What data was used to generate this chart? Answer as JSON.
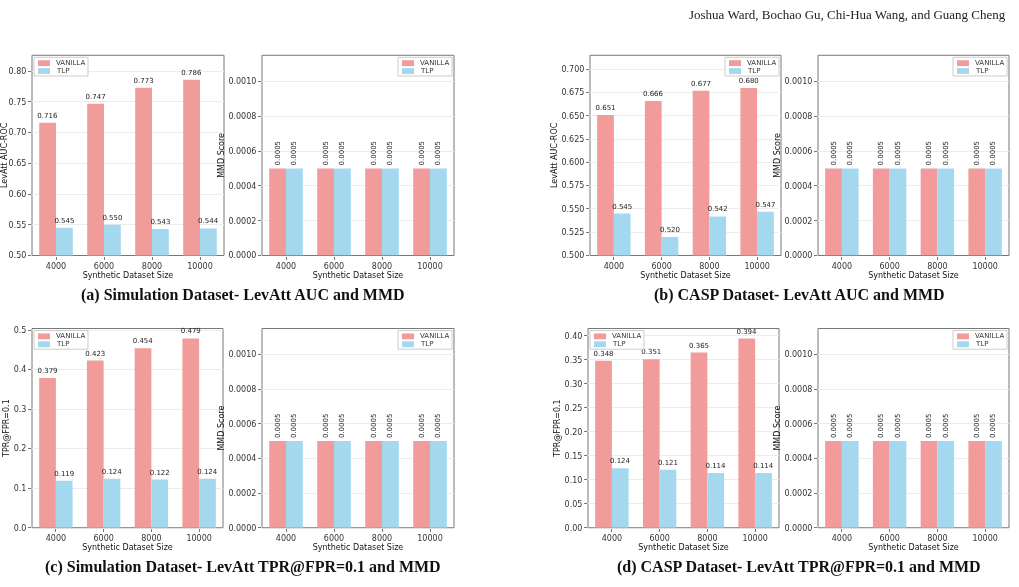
{
  "chart_data": [
    {
      "type": "bar",
      "categories": [
        "4000",
        "6000",
        "8000",
        "10000"
      ],
      "xlabel": "Synthetic Dataset Size",
      "ylabel": "LevAtt AUC-ROC",
      "ylim": [
        0.5,
        0.826
      ],
      "yticks": [
        {
          "value": 0.5,
          "label": "0.50"
        },
        {
          "value": 0.55,
          "label": "0.55"
        },
        {
          "value": 0.6,
          "label": "0.60"
        },
        {
          "value": 0.65,
          "label": "0.65"
        },
        {
          "value": 0.7,
          "label": "0.70"
        },
        {
          "value": 0.75,
          "label": "0.75"
        },
        {
          "value": 0.8,
          "label": "0.80"
        }
      ],
      "grid": "y",
      "legend": "top left",
      "series": [
        {
          "name": "VANILLA",
          "color": "#f29b9b",
          "values": [
            0.716,
            0.747,
            0.773,
            0.786
          ],
          "value_labels": [
            "0.716",
            "0.747",
            "0.773",
            "0.786"
          ]
        },
        {
          "name": "TLP",
          "color": "#a3d8ef",
          "values": [
            0.545,
            0.55,
            0.543,
            0.544
          ],
          "value_labels": [
            "0.545",
            "0.550",
            "0.543",
            "0.544"
          ]
        }
      ],
      "annotations": [
        "(a) Simulation Dataset- LevAtt AUC and MMD"
      ]
    },
    {
      "type": "bar",
      "categories": [
        "4000",
        "6000",
        "8000",
        "10000"
      ],
      "xlabel": "Synthetic Dataset Size",
      "ylabel": "MMD Score",
      "ylim": [
        0,
        0.00115
      ],
      "yticks": [
        {
          "value": 0,
          "label": "0.0000"
        },
        {
          "value": 0.0002,
          "label": "0.0002"
        },
        {
          "value": 0.0004,
          "label": "0.0004"
        },
        {
          "value": 0.0006,
          "label": "0.0006"
        },
        {
          "value": 0.0008,
          "label": "0.0008"
        },
        {
          "value": 0.001,
          "label": "0.0010"
        }
      ],
      "grid": "y",
      "legend": "top right",
      "series": [
        {
          "name": "VANILLA",
          "color": "#f29b9b",
          "values": [
            0.0005,
            0.0005,
            0.0005,
            0.0005
          ],
          "value_labels": [
            "0.0005",
            "0.0005",
            "0.0005",
            "0.0005"
          ]
        },
        {
          "name": "TLP",
          "color": "#a3d8ef",
          "values": [
            0.0005,
            0.0005,
            0.0005,
            0.0005
          ],
          "value_labels": [
            "0.0005",
            "0.0005",
            "0.0005",
            "0.0005"
          ]
        }
      ]
    },
    {
      "type": "bar",
      "categories": [
        "4000",
        "6000",
        "8000",
        "10000"
      ],
      "xlabel": "Synthetic Dataset Size",
      "ylabel": "LevAtt AUC-ROC",
      "ylim": [
        0.5,
        0.715
      ],
      "yticks": [
        {
          "value": 0.5,
          "label": "0.500"
        },
        {
          "value": 0.525,
          "label": "0.525"
        },
        {
          "value": 0.55,
          "label": "0.550"
        },
        {
          "value": 0.575,
          "label": "0.575"
        },
        {
          "value": 0.6,
          "label": "0.600"
        },
        {
          "value": 0.625,
          "label": "0.625"
        },
        {
          "value": 0.65,
          "label": "0.650"
        },
        {
          "value": 0.675,
          "label": "0.675"
        },
        {
          "value": 0.7,
          "label": "0.700"
        }
      ],
      "grid": "y",
      "legend": "top right",
      "series": [
        {
          "name": "VANILLA",
          "color": "#f29b9b",
          "values": [
            0.651,
            0.666,
            0.677,
            0.68
          ],
          "value_labels": [
            "0.651",
            "0.666",
            "0.677",
            "0.680"
          ]
        },
        {
          "name": "TLP",
          "color": "#a3d8ef",
          "values": [
            0.545,
            0.52,
            0.542,
            0.547
          ],
          "value_labels": [
            "0.545",
            "0.520",
            "0.542",
            "0.547"
          ]
        }
      ],
      "annotations": [
        "Joshua Ward, Bochao Gu, Chi-Hua Wang, and Guang Cheng",
        "(b) CASP Dataset- LevAtt AUC and MMD"
      ]
    },
    {
      "type": "bar",
      "categories": [
        "4000",
        "6000",
        "8000",
        "10000"
      ],
      "xlabel": "Synthetic Dataset Size",
      "ylabel": "MMD Score",
      "ylim": [
        0,
        0.00115
      ],
      "yticks": [
        {
          "value": 0,
          "label": "0.0000"
        },
        {
          "value": 0.0002,
          "label": "0.0002"
        },
        {
          "value": 0.0004,
          "label": "0.0004"
        },
        {
          "value": 0.0006,
          "label": "0.0006"
        },
        {
          "value": 0.0008,
          "label": "0.0008"
        },
        {
          "value": 0.001,
          "label": "0.0010"
        }
      ],
      "grid": "y",
      "legend": "top right",
      "series": [
        {
          "name": "VANILLA",
          "color": "#f29b9b",
          "values": [
            0.0005,
            0.0005,
            0.0005,
            0.0005
          ],
          "value_labels": [
            "0.0005",
            "0.0005",
            "0.0005",
            "0.0005"
          ]
        },
        {
          "name": "TLP",
          "color": "#a3d8ef",
          "values": [
            0.0005,
            0.0005,
            0.0005,
            0.0005
          ],
          "value_labels": [
            "0.0005",
            "0.0005",
            "0.0005",
            "0.0005"
          ]
        }
      ]
    },
    {
      "type": "bar",
      "categories": [
        "4000",
        "6000",
        "8000",
        "10000"
      ],
      "xlabel": "Synthetic Dataset Size",
      "ylabel": "TPR@FPR=0.1",
      "ylim": [
        0,
        0.504
      ],
      "yticks": [
        {
          "value": 0,
          "label": "0.0"
        },
        0.1,
        0.2,
        0.3,
        0.4,
        0.5
      ],
      "grid": "y",
      "legend": "top left",
      "series": [
        {
          "name": "VANILLA",
          "color": "#f29b9b",
          "values": [
            0.379,
            0.423,
            0.454,
            0.479
          ],
          "value_labels": [
            "0.379",
            "0.423",
            "0.454",
            "0.479"
          ]
        },
        {
          "name": "TLP",
          "color": "#a3d8ef",
          "values": [
            0.119,
            0.124,
            0.122,
            0.124
          ],
          "value_labels": [
            "0.119",
            "0.124",
            "0.122",
            "0.124"
          ]
        }
      ],
      "annotations": [
        "(c) Simulation Dataset- LevAtt TPR@FPR=0.1 and MMD"
      ]
    },
    {
      "type": "bar",
      "categories": [
        "4000",
        "6000",
        "8000",
        "10000"
      ],
      "xlabel": "Synthetic Dataset Size",
      "ylabel": "MMD Score",
      "ylim": [
        0,
        0.00115
      ],
      "yticks": [
        {
          "value": 0,
          "label": "0.0000"
        },
        {
          "value": 0.0002,
          "label": "0.0002"
        },
        {
          "value": 0.0004,
          "label": "0.0004"
        },
        {
          "value": 0.0006,
          "label": "0.0006"
        },
        {
          "value": 0.0008,
          "label": "0.0008"
        },
        {
          "value": 0.001,
          "label": "0.0010"
        }
      ],
      "grid": "y",
      "legend": "top right",
      "series": [
        {
          "name": "VANILLA",
          "color": "#f29b9b",
          "values": [
            0.0005,
            0.0005,
            0.0005,
            0.0005
          ],
          "value_labels": [
            "0.0005",
            "0.0005",
            "0.0005",
            "0.0005"
          ]
        },
        {
          "name": "TLP",
          "color": "#a3d8ef",
          "values": [
            0.0005,
            0.0005,
            0.0005,
            0.0005
          ],
          "value_labels": [
            "0.0005",
            "0.0005",
            "0.0005",
            "0.0005"
          ]
        }
      ]
    },
    {
      "type": "bar",
      "categories": [
        "4000",
        "6000",
        "8000",
        "10000"
      ],
      "xlabel": "Synthetic Dataset Size",
      "ylabel": "TPR@FPR=0.1",
      "ylim": [
        0,
        0.415
      ],
      "yticks": [
        {
          "value": 0,
          "label": "0.00"
        },
        {
          "value": 0.05,
          "label": "0.05"
        },
        {
          "value": 0.1,
          "label": "0.10"
        },
        {
          "value": 0.15,
          "label": "0.15"
        },
        {
          "value": 0.2,
          "label": "0.20"
        },
        {
          "value": 0.25,
          "label": "0.25"
        },
        {
          "value": 0.3,
          "label": "0.30"
        },
        {
          "value": 0.35,
          "label": "0.35"
        },
        {
          "value": 0.4,
          "label": "0.40"
        }
      ],
      "grid": "y",
      "legend": "top left",
      "series": [
        {
          "name": "VANILLA",
          "color": "#f29b9b",
          "values": [
            0.348,
            0.351,
            0.365,
            0.394
          ],
          "value_labels": [
            "0.348",
            "0.351",
            "0.365",
            "0.394"
          ]
        },
        {
          "name": "TLP",
          "color": "#a3d8ef",
          "values": [
            0.124,
            0.121,
            0.114,
            0.114
          ],
          "value_labels": [
            "0.124",
            "0.121",
            "0.114",
            "0.114"
          ]
        }
      ],
      "annotations": [
        "(d) CASP Dataset- LevAtt TPR@FPR=0.1 and MMD"
      ]
    },
    {
      "type": "bar",
      "categories": [
        "4000",
        "6000",
        "8000",
        "10000"
      ],
      "xlabel": "Synthetic Dataset Size",
      "ylabel": "MMD Score",
      "ylim": [
        0,
        0.00115
      ],
      "yticks": [
        {
          "value": 0,
          "label": "0.0000"
        },
        {
          "value": 0.0002,
          "label": "0.0002"
        },
        {
          "value": 0.0004,
          "label": "0.0004"
        },
        {
          "value": 0.0006,
          "label": "0.0006"
        },
        {
          "value": 0.0008,
          "label": "0.0008"
        },
        {
          "value": 0.001,
          "label": "0.0010"
        }
      ],
      "grid": "y",
      "legend": "top right",
      "series": [
        {
          "name": "VANILLA",
          "color": "#f29b9b",
          "values": [
            0.0005,
            0.0005,
            0.0005,
            0.0005
          ],
          "value_labels": [
            "0.0005",
            "0.0005",
            "0.0005",
            "0.0005"
          ]
        },
        {
          "name": "TLP",
          "color": "#a3d8ef",
          "values": [
            0.0005,
            0.0005,
            0.0005,
            0.0005
          ],
          "value_labels": [
            "0.0005",
            "0.0005",
            "0.0005",
            "0.0005"
          ]
        }
      ]
    }
  ]
}
